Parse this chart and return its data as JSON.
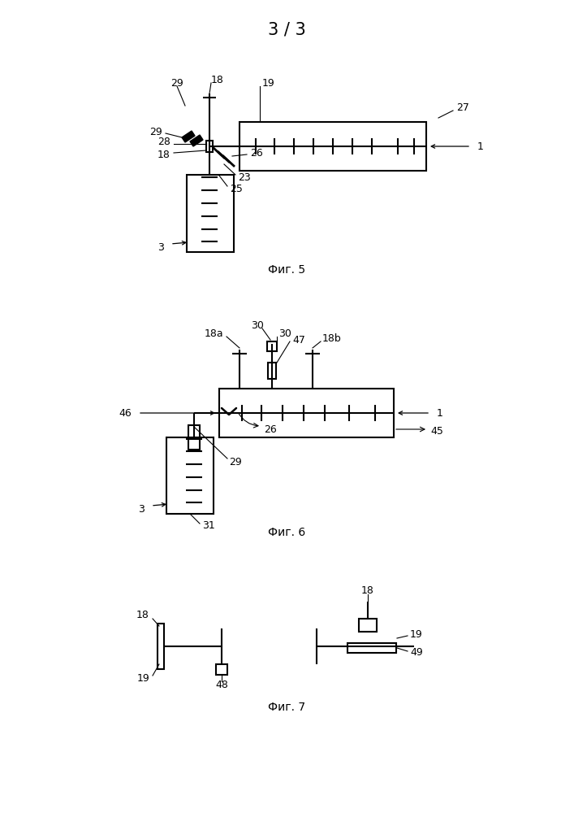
{
  "title": "3 / 3",
  "fig5_caption": "Фиг. 5",
  "fig6_caption": "Фиг. 6",
  "fig7_caption": "Фиг. 7",
  "bg_color": "#ffffff",
  "lw": 1.5,
  "lw_thin": 0.8
}
